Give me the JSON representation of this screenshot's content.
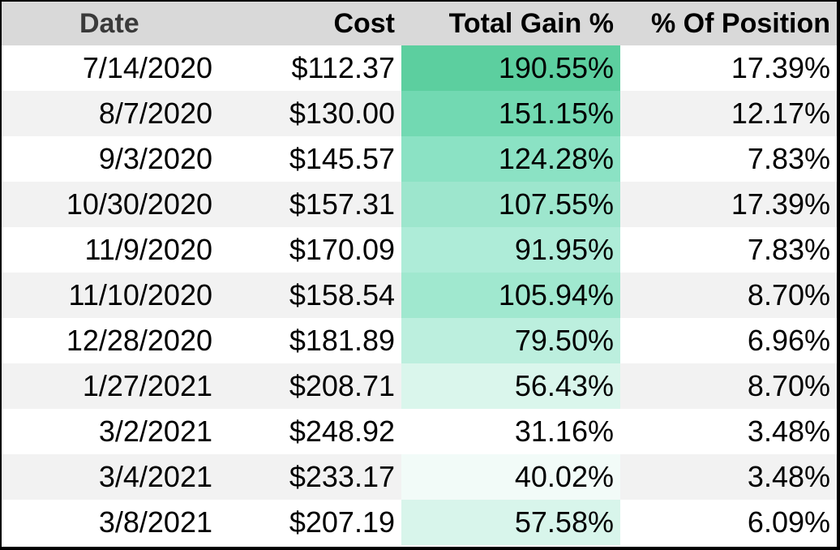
{
  "table": {
    "headers": [
      "Date",
      "Cost",
      "Total Gain %",
      "% Of Position"
    ],
    "rows": [
      {
        "date": "7/14/2020",
        "cost": "$112.37",
        "gain": "190.55%",
        "position": "17.39%",
        "gain_color": "#5ccf9f"
      },
      {
        "date": "8/7/2020",
        "cost": "$130.00",
        "gain": "151.15%",
        "position": "12.17%",
        "gain_color": "#72d9b2"
      },
      {
        "date": "9/3/2020",
        "cost": "$145.57",
        "gain": "124.28%",
        "position": "7.83%",
        "gain_color": "#8be2c4"
      },
      {
        "date": "10/30/2020",
        "cost": "$157.31",
        "gain": "107.55%",
        "position": "17.39%",
        "gain_color": "#9de6cd"
      },
      {
        "date": "11/9/2020",
        "cost": "$170.09",
        "gain": "91.95%",
        "position": "7.83%",
        "gain_color": "#aeecd8"
      },
      {
        "date": "11/10/2020",
        "cost": "$158.54",
        "gain": "105.94%",
        "position": "8.70%",
        "gain_color": "#a0e8cf"
      },
      {
        "date": "12/28/2020",
        "cost": "$181.89",
        "gain": "79.50%",
        "position": "6.96%",
        "gain_color": "#bcefde"
      },
      {
        "date": "1/27/2021",
        "cost": "$208.71",
        "gain": "56.43%",
        "position": "8.70%",
        "gain_color": "#daf6ec"
      },
      {
        "date": "3/2/2021",
        "cost": "$248.92",
        "gain": "31.16%",
        "position": "3.48%",
        "gain_color": "#ffffff"
      },
      {
        "date": "3/4/2021",
        "cost": "$233.17",
        "gain": "40.02%",
        "position": "3.48%",
        "gain_color": "#f2fbf8"
      },
      {
        "date": "3/8/2021",
        "cost": "$207.19",
        "gain": "57.58%",
        "position": "6.09%",
        "gain_color": "#d8f5eb"
      }
    ]
  },
  "colors": {
    "header_bg": "#d9d9d9",
    "row_alt_bg": "#f2f2f2",
    "border": "#000000"
  }
}
